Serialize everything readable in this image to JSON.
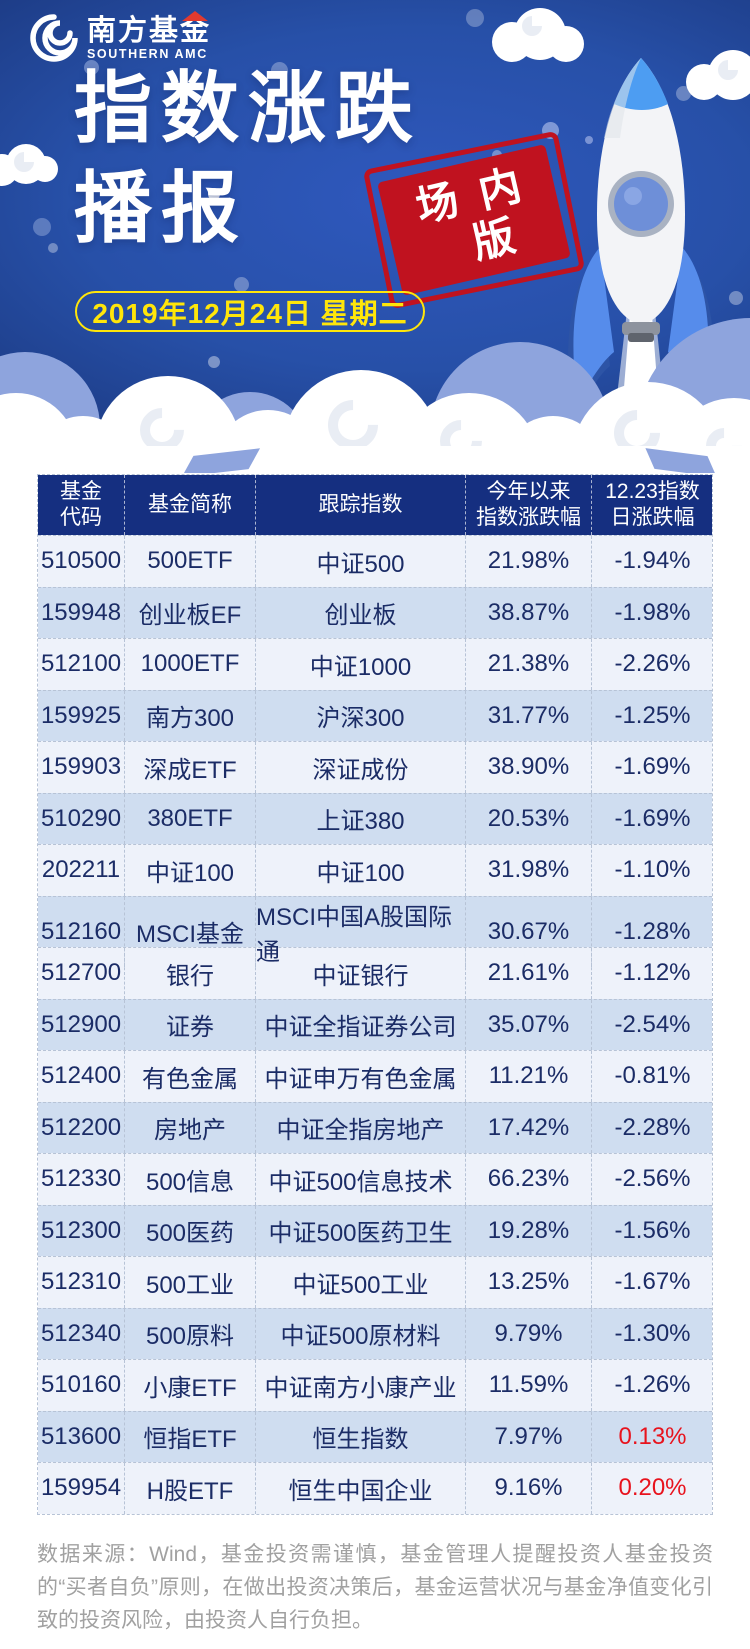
{
  "poster": {
    "brand": {
      "name": "南方基金",
      "subtitle": "SOUTHERN AMC"
    },
    "title": {
      "line1": "指数涨跌",
      "line2": "播报"
    },
    "stamp": {
      "line1": "场内",
      "line2": "版"
    },
    "date": "2019年12月24日 星期二",
    "colors": {
      "hero_blue": "#2a52b0",
      "hero_dark_navy": "#172f6e",
      "date_yellow": "#ffe60a",
      "stamp_red": "#c0121f",
      "table_header_bg": "#152f80",
      "row_light": "#eef2fa",
      "row_dark": "#cfddf0",
      "table_text_navy": "#1b2c66",
      "positive_red": "#e8131d",
      "cloud_shadow_blue": "#8ea4dd",
      "footer_grey": "#a1a1a1"
    }
  },
  "table": {
    "columns": [
      {
        "lines": [
          "基金",
          "代码"
        ]
      },
      {
        "lines": [
          "基金简称"
        ]
      },
      {
        "lines": [
          "跟踪指数"
        ]
      },
      {
        "lines": [
          "今年以来",
          "指数涨跌幅"
        ]
      },
      {
        "lines": [
          "12.23指数",
          "日涨跌幅"
        ]
      }
    ],
    "rows": [
      {
        "code": "510500",
        "name": "500ETF",
        "index": "中证500",
        "ytd": "21.98%",
        "daily": "-1.94%",
        "daily_red": false
      },
      {
        "code": "159948",
        "name": "创业板EF",
        "index": "创业板",
        "ytd": "38.87%",
        "daily": "-1.98%",
        "daily_red": false
      },
      {
        "code": "512100",
        "name": "1000ETF",
        "index": "中证1000",
        "ytd": "21.38%",
        "daily": "-2.26%",
        "daily_red": false
      },
      {
        "code": "159925",
        "name": "南方300",
        "index": "沪深300",
        "ytd": "31.77%",
        "daily": "-1.25%",
        "daily_red": false
      },
      {
        "code": "159903",
        "name": "深成ETF",
        "index": "深证成份",
        "ytd": "38.90%",
        "daily": "-1.69%",
        "daily_red": false
      },
      {
        "code": "510290",
        "name": "380ETF",
        "index": "上证380",
        "ytd": "20.53%",
        "daily": "-1.69%",
        "daily_red": false
      },
      {
        "code": "202211",
        "name": "中证100",
        "index": "中证100",
        "ytd": "31.98%",
        "daily": "-1.10%",
        "daily_red": false
      },
      {
        "code": "512160",
        "name": "MSCI基金",
        "index": "MSCI中国A股国际通",
        "ytd": "30.67%",
        "daily": "-1.28%",
        "daily_red": false
      },
      {
        "code": "512700",
        "name": "银行",
        "index": "中证银行",
        "ytd": "21.61%",
        "daily": "-1.12%",
        "daily_red": false
      },
      {
        "code": "512900",
        "name": "证券",
        "index": "中证全指证券公司",
        "ytd": "35.07%",
        "daily": "-2.54%",
        "daily_red": false
      },
      {
        "code": "512400",
        "name": "有色金属",
        "index": "中证申万有色金属",
        "ytd": "11.21%",
        "daily": "-0.81%",
        "daily_red": false
      },
      {
        "code": "512200",
        "name": "房地产",
        "index": "中证全指房地产",
        "ytd": "17.42%",
        "daily": "-2.28%",
        "daily_red": false
      },
      {
        "code": "512330",
        "name": "500信息",
        "index": "中证500信息技术",
        "ytd": "66.23%",
        "daily": "-2.56%",
        "daily_red": false
      },
      {
        "code": "512300",
        "name": "500医药",
        "index": "中证500医药卫生",
        "ytd": "19.28%",
        "daily": "-1.56%",
        "daily_red": false
      },
      {
        "code": "512310",
        "name": "500工业",
        "index": "中证500工业",
        "ytd": "13.25%",
        "daily": "-1.67%",
        "daily_red": false
      },
      {
        "code": "512340",
        "name": "500原料",
        "index": "中证500原材料",
        "ytd": "9.79%",
        "daily": "-1.30%",
        "daily_red": false
      },
      {
        "code": "510160",
        "name": "小康ETF",
        "index": "中证南方小康产业",
        "ytd": "11.59%",
        "daily": "-1.26%",
        "daily_red": false
      },
      {
        "code": "513600",
        "name": "恒指ETF",
        "index": "恒生指数",
        "ytd": "7.97%",
        "daily": "0.13%",
        "daily_red": true
      },
      {
        "code": "159954",
        "name": "H股ETF",
        "index": "恒生中国企业",
        "ytd": "9.16%",
        "daily": "0.20%",
        "daily_red": true
      }
    ]
  },
  "footer": {
    "disclaimer": "数据来源：Wind，基金投资需谨慎，基金管理人提醒投资人基金投资的“买者自负”原则，在做出投资决策后，基金运营状况与基金净值变化引致的投资风险，由投资人自行负担。"
  }
}
